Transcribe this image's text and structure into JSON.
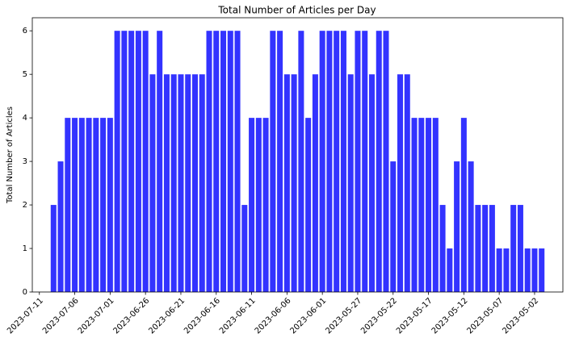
{
  "chart_data": {
    "type": "bar",
    "title": "Total Number of Articles per Day",
    "ylabel": "Total Number of Articles",
    "color": "#3333ff",
    "x": [
      "2023-07-09",
      "2023-07-08",
      "2023-07-07",
      "2023-07-06",
      "2023-07-05",
      "2023-07-04",
      "2023-07-03",
      "2023-07-02",
      "2023-07-01",
      "2023-06-30",
      "2023-06-29",
      "2023-06-28",
      "2023-06-27",
      "2023-06-26",
      "2023-06-25",
      "2023-06-24",
      "2023-06-23",
      "2023-06-22",
      "2023-06-21",
      "2023-06-20",
      "2023-06-19",
      "2023-06-18",
      "2023-06-17",
      "2023-06-16",
      "2023-06-15",
      "2023-06-14",
      "2023-06-13",
      "2023-06-12",
      "2023-06-11",
      "2023-06-10",
      "2023-06-09",
      "2023-06-08",
      "2023-06-07",
      "2023-06-06",
      "2023-06-05",
      "2023-06-04",
      "2023-06-03",
      "2023-06-02",
      "2023-06-01",
      "2023-05-31",
      "2023-05-30",
      "2023-05-29",
      "2023-05-28",
      "2023-05-27",
      "2023-05-26",
      "2023-05-25",
      "2023-05-24",
      "2023-05-23",
      "2023-05-22",
      "2023-05-21",
      "2023-05-20",
      "2023-05-19",
      "2023-05-18",
      "2023-05-17",
      "2023-05-16",
      "2023-05-15",
      "2023-05-14",
      "2023-05-13",
      "2023-05-12",
      "2023-05-11",
      "2023-05-10",
      "2023-05-09",
      "2023-05-08",
      "2023-05-07",
      "2023-05-06",
      "2023-05-05",
      "2023-05-04",
      "2023-05-03",
      "2023-05-02",
      "2023-05-01"
    ],
    "values": [
      2,
      3,
      4,
      4,
      4,
      4,
      4,
      4,
      4,
      6,
      6,
      6,
      6,
      6,
      5,
      6,
      5,
      5,
      5,
      5,
      5,
      5,
      6,
      6,
      6,
      6,
      6,
      2,
      4,
      4,
      4,
      6,
      6,
      5,
      5,
      6,
      4,
      5,
      6,
      6,
      6,
      6,
      5,
      6,
      6,
      5,
      6,
      6,
      3,
      5,
      5,
      4,
      4,
      4,
      4,
      2,
      1,
      3,
      4,
      3,
      2,
      2,
      2,
      1,
      1,
      2,
      2,
      1,
      1,
      1
    ],
    "xlim": [
      "2023-07-12",
      "2023-04-28"
    ],
    "xticks": [
      "2023-07-11",
      "2023-07-06",
      "2023-07-01",
      "2023-06-26",
      "2023-06-21",
      "2023-06-16",
      "2023-06-11",
      "2023-06-06",
      "2023-06-01",
      "2023-05-27",
      "2023-05-22",
      "2023-05-17",
      "2023-05-12",
      "2023-05-07",
      "2023-05-02"
    ],
    "ylim": [
      0,
      6.3
    ],
    "yticks": [
      0,
      1,
      2,
      3,
      4,
      5,
      6
    ],
    "grid": false
  }
}
